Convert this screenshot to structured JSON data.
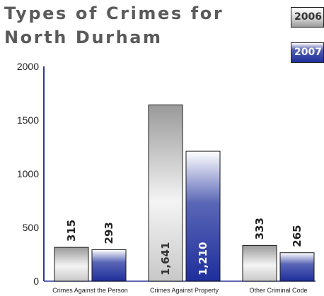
{
  "chart_data": {
    "type": "bar",
    "title_lines": [
      "Types of Crimes for",
      "North Durham"
    ],
    "categories": [
      "Crimes Against the Person",
      "Crimes Against Property",
      "Other Criminal Code"
    ],
    "series": [
      {
        "name": "2006",
        "values": [
          315,
          1641,
          333
        ],
        "labels": [
          "315",
          "1,641",
          "333"
        ]
      },
      {
        "name": "2007",
        "values": [
          293,
          1210,
          265
        ],
        "labels": [
          "293",
          "1,210",
          "265"
        ]
      }
    ],
    "ylim": [
      0,
      2000
    ],
    "yticks": [
      0,
      500,
      1000,
      1500,
      2000
    ],
    "ytick_labels": [
      "0",
      "500",
      "1000",
      "1500",
      "2000"
    ],
    "grid": false,
    "legend_position": "top-right",
    "colors": {
      "2006": "#b4b4b4",
      "2007": "#23329e",
      "axis": "#2b3a9c"
    }
  }
}
